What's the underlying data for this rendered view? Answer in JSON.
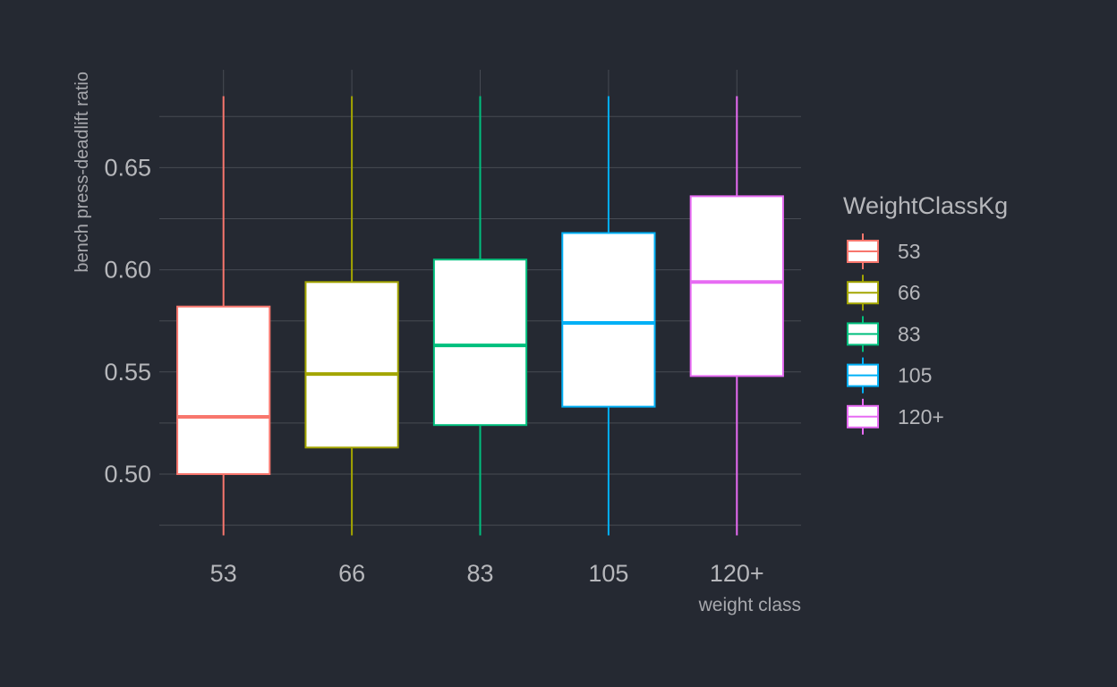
{
  "chart_data": {
    "type": "boxplot",
    "title": "",
    "xlabel": "weight class",
    "ylabel": "bench press-deadlift ratio",
    "categories": [
      "53",
      "66",
      "83",
      "105",
      "120+"
    ],
    "ylim": [
      0.47,
      0.685
    ],
    "y_ticks": [
      0.5,
      0.55,
      0.6,
      0.65
    ],
    "y_tick_labels": [
      "0.50",
      "0.55",
      "0.60",
      "0.65"
    ],
    "grid": true,
    "boxes": [
      {
        "category": "53",
        "whisker_low": 0.47,
        "q1": 0.5,
        "median": 0.528,
        "q3": 0.582,
        "whisker_high": 0.685
      },
      {
        "category": "66",
        "whisker_low": 0.47,
        "q1": 0.513,
        "median": 0.549,
        "q3": 0.594,
        "whisker_high": 0.685
      },
      {
        "category": "83",
        "whisker_low": 0.47,
        "q1": 0.524,
        "median": 0.563,
        "q3": 0.605,
        "whisker_high": 0.685
      },
      {
        "category": "105",
        "whisker_low": 0.47,
        "q1": 0.533,
        "median": 0.574,
        "q3": 0.618,
        "whisker_high": 0.685
      },
      {
        "category": "120+",
        "whisker_low": 0.47,
        "q1": 0.548,
        "median": 0.594,
        "q3": 0.636,
        "whisker_high": 0.685
      }
    ],
    "colors": [
      "#f8766d",
      "#a3a500",
      "#00bf7d",
      "#00b0f6",
      "#e76bf3"
    ],
    "box_fill": "#ffffff",
    "legend": {
      "title": "WeightClassKg",
      "position": "right",
      "entries": [
        "53",
        "66",
        "83",
        "105",
        "120+"
      ]
    }
  }
}
